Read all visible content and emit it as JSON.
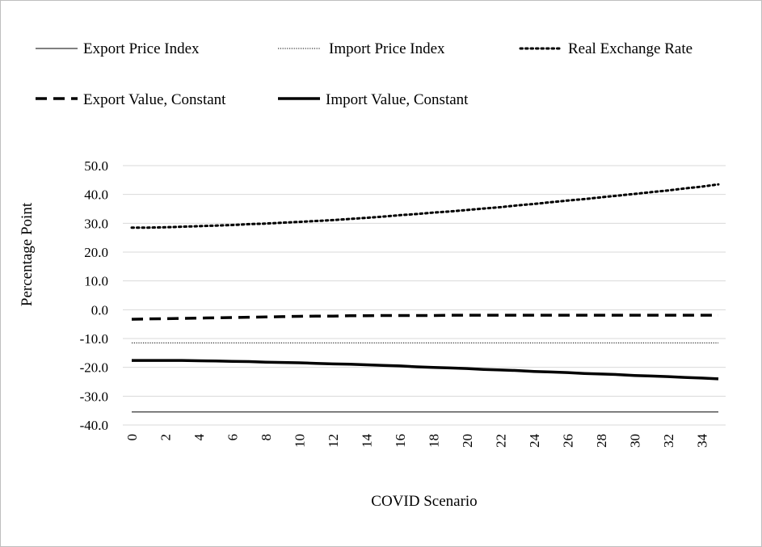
{
  "chart_data": {
    "type": "line",
    "title": "",
    "xlabel": "COVID Scenario",
    "ylabel": "Percentage Point",
    "ylim": [
      -40,
      50
    ],
    "y_ticks": [
      "50.0",
      "40.0",
      "30.0",
      "20.0",
      "10.0",
      "0.0",
      "-10.0",
      "-20.0",
      "-30.0",
      "-40.0"
    ],
    "x_ticks": [
      "0",
      "2",
      "4",
      "6",
      "8",
      "10",
      "12",
      "14",
      "16",
      "18",
      "20",
      "22",
      "24",
      "26",
      "28",
      "30",
      "32",
      "34"
    ],
    "x": [
      0,
      1,
      2,
      3,
      4,
      5,
      6,
      7,
      8,
      9,
      10,
      11,
      12,
      13,
      14,
      15,
      16,
      17,
      18,
      19,
      20,
      21,
      22,
      23,
      24,
      25,
      26,
      27,
      28,
      29,
      30,
      31,
      32,
      33,
      34,
      35
    ],
    "grid": true,
    "legend_position": "top",
    "series": [
      {
        "name": "Export Price Index",
        "style": "thin-solid",
        "values": [
          -35.5,
          -35.5,
          -35.5,
          -35.5,
          -35.5,
          -35.5,
          -35.5,
          -35.5,
          -35.5,
          -35.5,
          -35.5,
          -35.5,
          -35.5,
          -35.5,
          -35.5,
          -35.5,
          -35.5,
          -35.5,
          -35.5,
          -35.5,
          -35.5,
          -35.5,
          -35.5,
          -35.5,
          -35.5,
          -35.5,
          -35.5,
          -35.5,
          -35.5,
          -35.5,
          -35.5,
          -35.5,
          -35.5,
          -35.5,
          -35.5,
          -35.5
        ]
      },
      {
        "name": "Import Price Index",
        "style": "thin-dotted",
        "values": [
          -11.5,
          -11.5,
          -11.5,
          -11.5,
          -11.5,
          -11.5,
          -11.5,
          -11.5,
          -11.5,
          -11.5,
          -11.5,
          -11.5,
          -11.5,
          -11.5,
          -11.5,
          -11.5,
          -11.5,
          -11.5,
          -11.5,
          -11.5,
          -11.5,
          -11.5,
          -11.5,
          -11.5,
          -11.5,
          -11.5,
          -11.5,
          -11.5,
          -11.5,
          -11.5,
          -11.5,
          -11.5,
          -11.5,
          -11.5,
          -11.5,
          -11.5
        ]
      },
      {
        "name": "Real Exchange Rate",
        "style": "dotted",
        "values": [
          28.5,
          28.5,
          28.6,
          28.8,
          29.0,
          29.2,
          29.4,
          29.7,
          29.9,
          30.2,
          30.5,
          30.8,
          31.1,
          31.5,
          31.9,
          32.3,
          32.8,
          33.2,
          33.7,
          34.1,
          34.6,
          35.1,
          35.6,
          36.2,
          36.7,
          37.3,
          37.9,
          38.4,
          39.0,
          39.6,
          40.2,
          40.8,
          41.4,
          42.1,
          42.7,
          43.5
        ]
      },
      {
        "name": "Export Value, Constant",
        "style": "dashed",
        "values": [
          -3.3,
          -3.2,
          -3.1,
          -3.0,
          -2.9,
          -2.8,
          -2.7,
          -2.6,
          -2.5,
          -2.4,
          -2.3,
          -2.2,
          -2.2,
          -2.1,
          -2.1,
          -2.0,
          -2.0,
          -2.0,
          -2.0,
          -1.9,
          -1.9,
          -1.9,
          -1.9,
          -1.9,
          -1.9,
          -1.9,
          -1.9,
          -1.9,
          -1.9,
          -1.9,
          -1.9,
          -1.9,
          -1.9,
          -1.9,
          -1.9,
          -1.9
        ]
      },
      {
        "name": "Import Value, Constant",
        "style": "thick-solid",
        "values": [
          -17.6,
          -17.6,
          -17.6,
          -17.6,
          -17.7,
          -17.8,
          -17.9,
          -18.0,
          -18.2,
          -18.3,
          -18.4,
          -18.6,
          -18.8,
          -18.9,
          -19.1,
          -19.3,
          -19.5,
          -19.8,
          -20.0,
          -20.2,
          -20.4,
          -20.7,
          -20.9,
          -21.1,
          -21.4,
          -21.6,
          -21.8,
          -22.1,
          -22.3,
          -22.5,
          -22.8,
          -23.0,
          -23.2,
          -23.5,
          -23.7,
          -24.0
        ]
      }
    ]
  }
}
